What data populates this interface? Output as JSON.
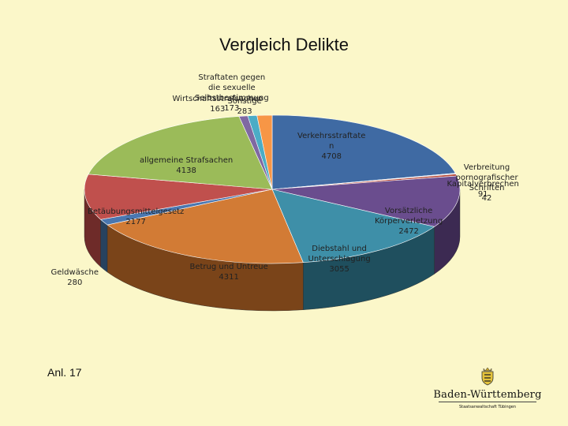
{
  "chart_data": {
    "type": "pie",
    "title": "Vergleich Delikte",
    "slices": [
      {
        "label": "Verkehrsstraftaten",
        "text": "Verkehrsstraftate\nn\n4708",
        "value": 4708,
        "color": "#3f6aa3",
        "side": "#243f63"
      },
      {
        "label": "Verbreitung pornografischer Schriften",
        "text": "Verbreitung\npornografischer\nSchriften\n42",
        "value": 42,
        "color": "#c9d9ee",
        "side": "#7d8ea6"
      },
      {
        "label": "Kapitalverbrechen",
        "text": "Kapitalverbrechen\n91",
        "value": 91,
        "color": "#b84a3a",
        "side": "#6f2a20"
      },
      {
        "label": "Vorsätzliche Körperverletzung",
        "text": "Vorsätzliche\nKörperverletzung\n2472",
        "value": 2472,
        "color": "#6a4d8e",
        "side": "#3c2a52"
      },
      {
        "label": "Diebstahl und Unterschlagung",
        "text": "Diebstahl und\nUnterschlagung\n3055",
        "value": 3055,
        "color": "#3e8fa8",
        "side": "#1f4f5e"
      },
      {
        "label": "Betrug und Untreue",
        "text": "Betrug und Untreue\n4311",
        "value": 4311,
        "color": "#d27b35",
        "side": "#7a4419"
      },
      {
        "label": "Geldwäsche",
        "text": "Geldwäsche\n280",
        "value": 280,
        "color": "#4a77b0",
        "side": "#27425f"
      },
      {
        "label": "Betäubungsmittelgesetz",
        "text": "Betäubungsmittelgesetz\n2177",
        "value": 2177,
        "color": "#c0504d",
        "side": "#6e2b29"
      },
      {
        "label": "allgemeine Strafsachen",
        "text": "allgemeine Strafsachen\n4138",
        "value": 4138,
        "color": "#9bbb59",
        "side": "#57693a"
      },
      {
        "label": "Wirtschaftsstrafsachen",
        "text": "Wirtschaftsstrafsachen\n163",
        "value": 163,
        "color": "#7f68a2",
        "side": "#47395c"
      },
      {
        "label": "Straftaten gegen die sexuelle Selbstbestimmung",
        "text": "Straftaten gegen\ndie sexuelle\nSelbstbestimmung\n173",
        "value": 173,
        "color": "#4bacc6",
        "side": "#2a6171"
      },
      {
        "label": "Sonstige",
        "text": "Sonstige\n283",
        "value": 283,
        "color": "#f79646",
        "side": "#8c5326"
      }
    ]
  },
  "footer": {
    "annex": "Anl. 17"
  },
  "logo": {
    "name": "Baden-Württemberg",
    "subtitle": "Staatsanwaltschaft Tübingen",
    "crest_icon": "coat-of-arms-icon"
  }
}
